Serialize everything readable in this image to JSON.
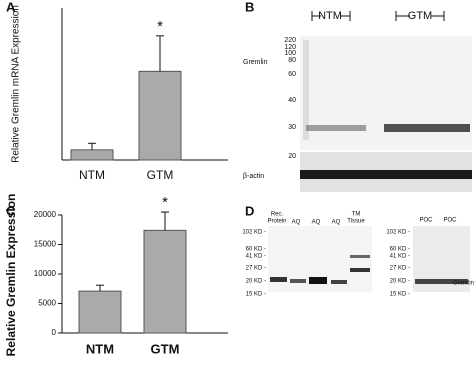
{
  "chart_data": [
    {
      "type": "bar",
      "panel": "A",
      "ylabel": "Relative Gremlin mRNA Expression",
      "categories": [
        "NTM",
        "GTM"
      ],
      "values": [
        0.4,
        3.5
      ],
      "errors": [
        0.26,
        1.4
      ],
      "color": "#aaaaaa",
      "ylim": [
        0,
        6
      ],
      "annotation": "*"
    },
    {
      "type": "bar",
      "panel": "C",
      "ylabel": "Relative Gremlin Expression",
      "categories": [
        "NTM",
        "GTM"
      ],
      "values": [
        7100,
        17400
      ],
      "errors": [
        1000,
        3100
      ],
      "color": "#aaaaaa",
      "ylim": [
        0,
        20000
      ],
      "yticks": [
        0,
        5000,
        10000,
        15000,
        20000
      ],
      "annotation": "*"
    }
  ],
  "blots": {
    "b": {
      "panel": "B",
      "groups": [
        "NTM",
        "GTM"
      ],
      "markers": [
        "220",
        "120",
        "100",
        "80",
        "60",
        "40",
        "30",
        "20"
      ],
      "rows": [
        "Gremlin",
        "β-actin"
      ]
    },
    "d": {
      "panel": "D",
      "lanes": [
        [
          "Rec.",
          "Protein"
        ],
        [
          "AQ"
        ],
        [
          "AQ"
        ],
        [
          "AQ"
        ],
        [
          "TM",
          "Tissue"
        ]
      ],
      "markers": [
        "102 KD -",
        "60 KD -",
        "41 KD -",
        "27 KD -",
        "20 KD -",
        "15 KD -"
      ],
      "lanes2": [
        "POC",
        "POC"
      ],
      "markers2": [
        "102 KD -",
        "60 KD -",
        "41 KD -",
        "27 KD -",
        "20 KD -",
        "15 KD -"
      ],
      "label": "Gremlin"
    }
  }
}
